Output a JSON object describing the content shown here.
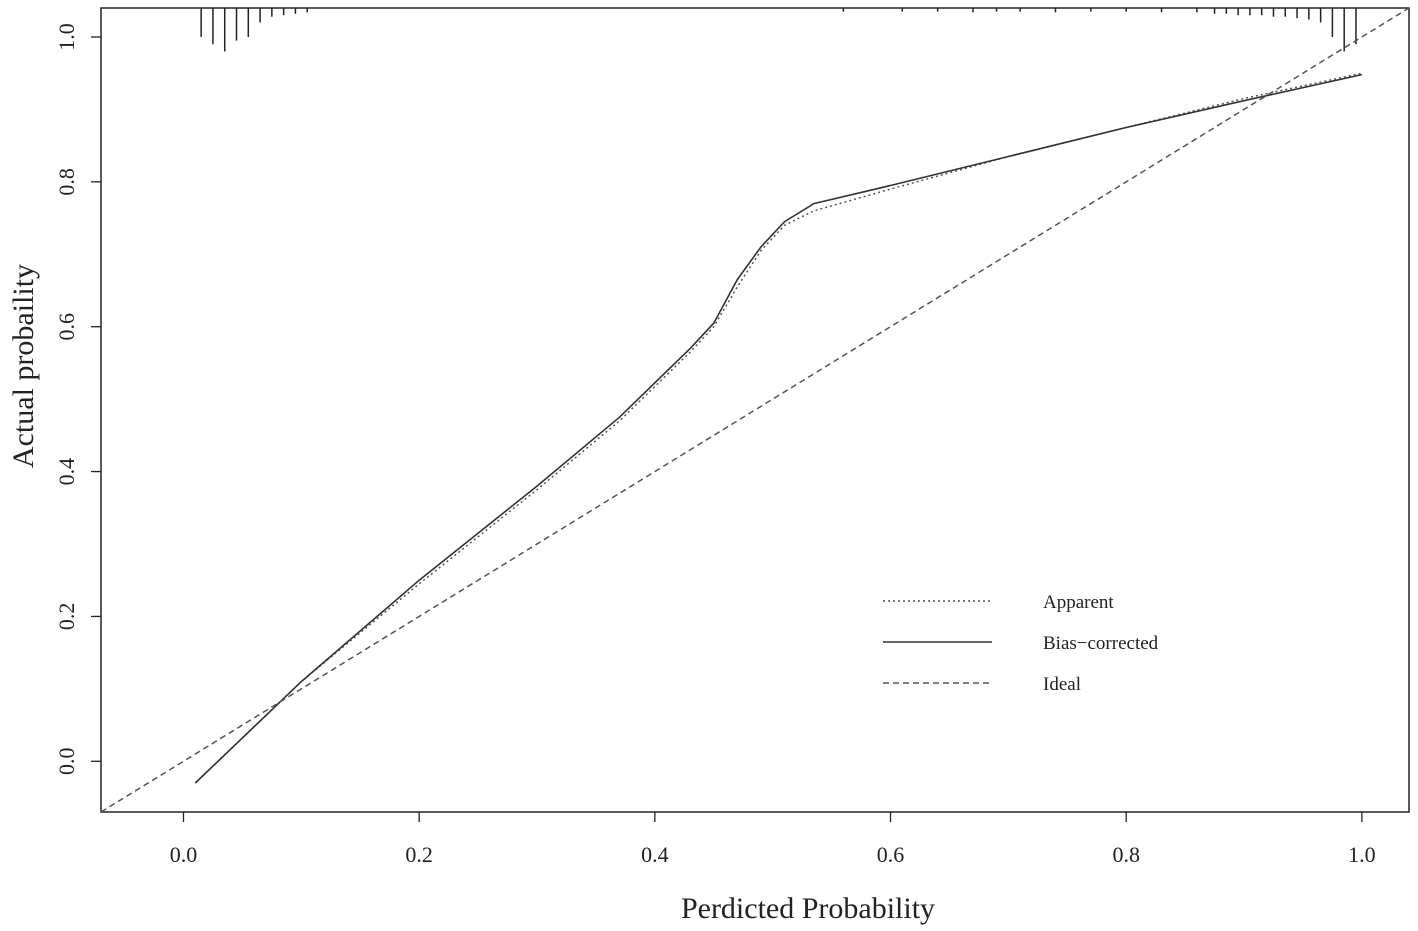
{
  "chart_data": {
    "type": "line",
    "xlabel": "Perdicted Probability",
    "ylabel": "Actual probaility",
    "xlim": [
      -0.07,
      1.04
    ],
    "ylim": [
      -0.07,
      1.04
    ],
    "x_ticks": [
      "0.0",
      "0.2",
      "0.4",
      "0.6",
      "0.8",
      "1.0"
    ],
    "y_ticks": [
      "0.0",
      "0.2",
      "0.4",
      "0.6",
      "0.8",
      "1.0"
    ],
    "grid": false,
    "legend_position": "bottom-right",
    "series": [
      {
        "name": "Apparent",
        "style": "dotted",
        "color": "#555555",
        "x": [
          0.01,
          0.1,
          0.2,
          0.3,
          0.37,
          0.43,
          0.45,
          0.47,
          0.49,
          0.51,
          0.535,
          0.6,
          0.7,
          0.8,
          0.9,
          1.0
        ],
        "y": [
          -0.03,
          0.11,
          0.245,
          0.375,
          0.47,
          0.565,
          0.6,
          0.655,
          0.705,
          0.74,
          0.76,
          0.79,
          0.835,
          0.875,
          0.915,
          0.95
        ]
      },
      {
        "name": "Bias−corrected",
        "style": "solid",
        "color": "#333333",
        "x": [
          0.01,
          0.1,
          0.2,
          0.3,
          0.37,
          0.43,
          0.45,
          0.47,
          0.49,
          0.51,
          0.535,
          0.6,
          0.7,
          0.8,
          0.9,
          1.0
        ],
        "y": [
          -0.03,
          0.11,
          0.25,
          0.38,
          0.475,
          0.57,
          0.605,
          0.665,
          0.71,
          0.745,
          0.77,
          0.795,
          0.835,
          0.875,
          0.912,
          0.948
        ]
      },
      {
        "name": "Ideal",
        "style": "dashed",
        "color": "#555555",
        "x": [
          -0.07,
          1.04
        ],
        "y": [
          -0.07,
          1.04
        ]
      }
    ],
    "rug_low_x": [
      0.015,
      0.025,
      0.035,
      0.045,
      0.055,
      0.065,
      0.075,
      0.085,
      0.095,
      0.105
    ],
    "rug_low_len": [
      0.04,
      0.05,
      0.06,
      0.045,
      0.04,
      0.02,
      0.012,
      0.01,
      0.008,
      0.006
    ],
    "rug_high_x": [
      0.56,
      0.61,
      0.64,
      0.67,
      0.69,
      0.71,
      0.74,
      0.77,
      0.8,
      0.83,
      0.86,
      0.875,
      0.885,
      0.895,
      0.905,
      0.915,
      0.925,
      0.935,
      0.945,
      0.955,
      0.965,
      0.975,
      0.985,
      0.995
    ],
    "rug_high_len": [
      0.005,
      0.005,
      0.005,
      0.006,
      0.005,
      0.005,
      0.006,
      0.005,
      0.005,
      0.006,
      0.006,
      0.008,
      0.008,
      0.01,
      0.01,
      0.01,
      0.012,
      0.012,
      0.014,
      0.016,
      0.02,
      0.04,
      0.06,
      0.05
    ]
  }
}
